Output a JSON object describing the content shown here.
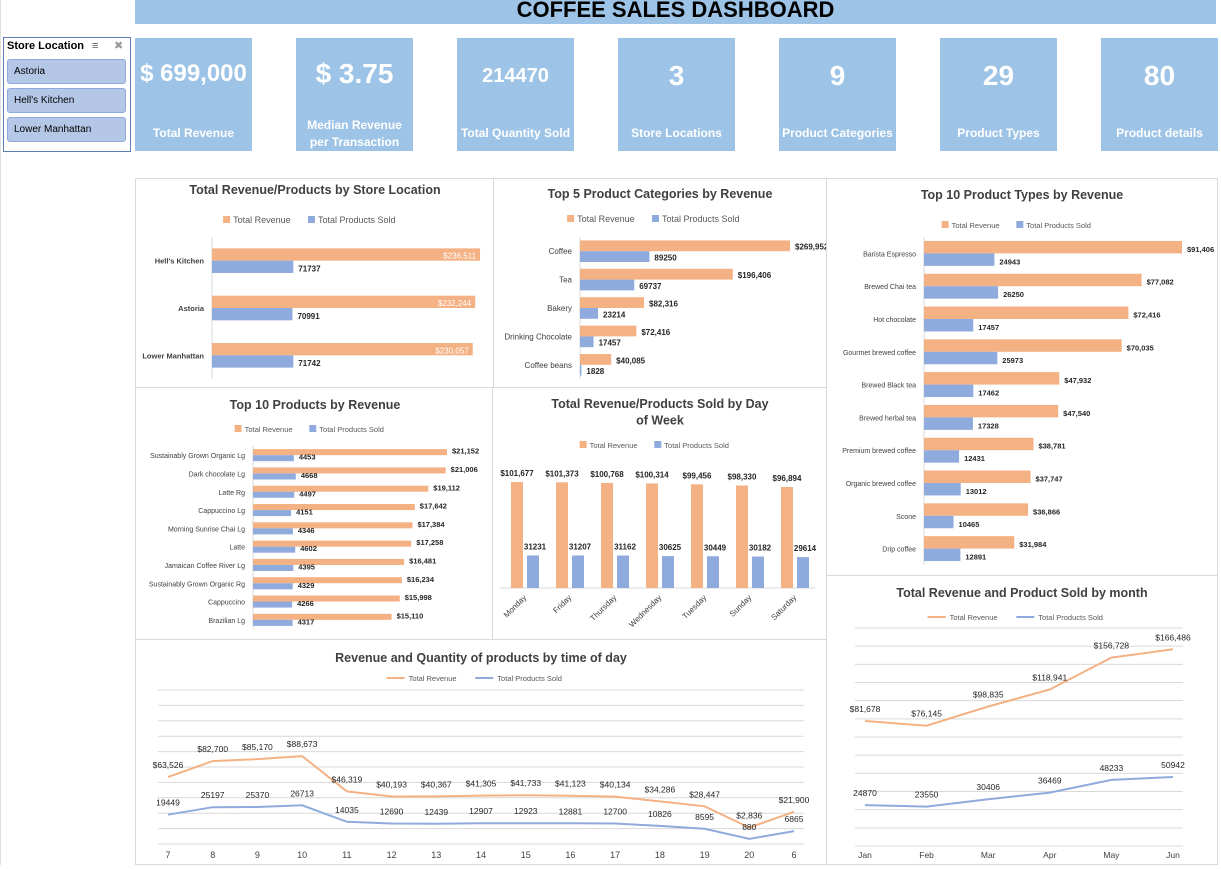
{
  "title": "COFFEE SALES DASHBOARD",
  "colors": {
    "revenue": "#f4b183",
    "products": "#8faadc",
    "header": "#9dc3e6"
  },
  "slicer": {
    "header": "Store Location",
    "icons": [
      "multi-select-icon",
      "clear-filter-icon"
    ],
    "items": [
      "Astoria",
      "Hell's Kitchen",
      "Lower Manhattan"
    ]
  },
  "kpis": [
    {
      "value": "$ 699,000",
      "label": "Total Revenue"
    },
    {
      "value": "$ 3.75",
      "label": "Median Revenue per Transaction"
    },
    {
      "value": "214470",
      "label": "Total Quantity Sold"
    },
    {
      "value": "3",
      "label": "Store Locations"
    },
    {
      "value": "9",
      "label": "Product Categories"
    },
    {
      "value": "29",
      "label": "Product Types"
    },
    {
      "value": "80",
      "label": "Product details"
    }
  ],
  "chart_data": [
    {
      "id": "store",
      "type": "bar",
      "orientation": "horizontal",
      "title": "Total Revenue/Products by Store Location",
      "categories": [
        "Hell's Kitchen",
        "Astoria",
        "Lower Manhattan"
      ],
      "series": [
        {
          "name": "Total Revenue",
          "values": [
            236511,
            232244,
            230057
          ],
          "labels": [
            "$236,511",
            "$232,244",
            "$230,057"
          ]
        },
        {
          "name": "Total Products Sold",
          "values": [
            71737,
            70991,
            71742
          ],
          "labels": [
            "71737",
            "70991",
            "71742"
          ]
        }
      ],
      "legend": "top"
    },
    {
      "id": "categories",
      "type": "bar",
      "orientation": "horizontal",
      "title": "Top 5 Product Categories by Revenue",
      "categories": [
        "Coffee",
        "Tea",
        "Bakery",
        "Drinking Chocolate",
        "Coffee beans"
      ],
      "series": [
        {
          "name": "Total Revenue",
          "values": [
            269952,
            196406,
            82316,
            72416,
            40085
          ],
          "labels": [
            "$269,952",
            "$196,406",
            "$82,316",
            "$72,416",
            "$40,085"
          ]
        },
        {
          "name": "Total Products Sold",
          "values": [
            89250,
            69737,
            23214,
            17457,
            1828
          ],
          "labels": [
            "89250",
            "69737",
            "23214",
            "17457",
            "1828"
          ]
        }
      ],
      "legend": "top"
    },
    {
      "id": "types",
      "type": "bar",
      "orientation": "horizontal",
      "title": "Top 10 Product Types by Revenue",
      "categories": [
        "Barista Espresso",
        "Brewed Chai tea",
        "Hot chocolate",
        "Gourmet brewed coffee",
        "Brewed Black tea",
        "Brewed herbal tea",
        "Premium brewed coffee",
        "Organic brewed coffee",
        "Scone",
        "Drip coffee"
      ],
      "series": [
        {
          "name": "Total Revenue",
          "values": [
            91406,
            77082,
            72416,
            70035,
            47932,
            47540,
            38781,
            37747,
            36866,
            31984
          ],
          "labels": [
            "$91,406",
            "$77,082",
            "$72,416",
            "$70,035",
            "$47,932",
            "$47,540",
            "$38,781",
            "$37,747",
            "$36,866",
            "$31,984"
          ]
        },
        {
          "name": "Total Products Sold",
          "values": [
            24943,
            26250,
            17457,
            25973,
            17462,
            17328,
            12431,
            13012,
            10465,
            12891
          ],
          "labels": [
            "24943",
            "26250",
            "17457",
            "25973",
            "17462",
            "17328",
            "12431",
            "13012",
            "10465",
            "12891"
          ]
        }
      ],
      "legend": "top"
    },
    {
      "id": "products",
      "type": "bar",
      "orientation": "horizontal",
      "title": "Top 10 Products by Revenue",
      "categories": [
        "Sustainably Grown Organic Lg",
        "Dark chocolate Lg",
        "Latte Rg",
        "Cappuccino Lg",
        "Morning Sunrise Chai Lg",
        "Latte",
        "Jamaican Coffee River Lg",
        "Sustainably Grown Organic Rg",
        "Cappuccino",
        "Brazilian Lg"
      ],
      "series": [
        {
          "name": "Total Revenue",
          "values": [
            21152,
            21006,
            19112,
            17642,
            17384,
            17258,
            16481,
            16234,
            15998,
            15110
          ],
          "labels": [
            "$21,152",
            "$21,006",
            "$19,112",
            "$17,642",
            "$17,384",
            "$17,258",
            "$16,481",
            "$16,234",
            "$15,998",
            "$15,110"
          ]
        },
        {
          "name": "Total Products Sold",
          "values": [
            4453,
            4668,
            4497,
            4151,
            4346,
            4602,
            4395,
            4329,
            4266,
            4317
          ],
          "labels": [
            "4453",
            "4668",
            "4497",
            "4151",
            "4346",
            "4602",
            "4395",
            "4329",
            "4266",
            "4317"
          ]
        }
      ],
      "legend": "top"
    },
    {
      "id": "weekday",
      "type": "bar",
      "orientation": "vertical",
      "title": "Total Revenue/Products Sold by Day of Week",
      "categories": [
        "Monday",
        "Friday",
        "Thursday",
        "Wednesday",
        "Tuesday",
        "Sunday",
        "Saturday"
      ],
      "series": [
        {
          "name": "Total Revenue",
          "values": [
            101677,
            101373,
            100768,
            100314,
            99456,
            98330,
            96894
          ],
          "labels": [
            "$101,677",
            "$101,373",
            "$100,768",
            "$100,314",
            "$99,456",
            "$98,330",
            "$96,894"
          ]
        },
        {
          "name": "Total Products Sold",
          "values": [
            31231,
            31207,
            31162,
            30625,
            30449,
            30182,
            29614
          ],
          "labels": [
            "31231",
            "31207",
            "31162",
            "30625",
            "30449",
            "30182",
            "29614"
          ]
        }
      ],
      "legend": "top"
    },
    {
      "id": "hourly",
      "type": "line",
      "title": "Revenue and Quantity of products by time of day",
      "categories": [
        "7",
        "8",
        "9",
        "10",
        "11",
        "12",
        "13",
        "14",
        "15",
        "16",
        "17",
        "18",
        "19",
        "20",
        "6"
      ],
      "series": [
        {
          "name": "Total Revenue",
          "values": [
            63526,
            82700,
            85170,
            88673,
            46319,
            40193,
            40367,
            41305,
            41733,
            41123,
            40134,
            34286,
            28447,
            2836,
            21900
          ],
          "labels": [
            "$63,526",
            "$82,700",
            "$85,170",
            "$88,673",
            "$46,319",
            "$40,193",
            "$40,367",
            "$41,305",
            "$41,733",
            "$41,123",
            "$40,134",
            "$34,286",
            "$28,447",
            "$2,836",
            "$21,900"
          ]
        },
        {
          "name": "Total Products Sold",
          "values": [
            19449,
            25197,
            25370,
            26713,
            14035,
            12690,
            12439,
            12907,
            12923,
            12881,
            12700,
            10826,
            8595,
            880,
            6865
          ],
          "labels": [
            "19449",
            "25197",
            "25370",
            "26713",
            "14035",
            "12690",
            "12439",
            "12907",
            "12923",
            "12881",
            "12700",
            "10826",
            "8595",
            "880",
            "6865"
          ]
        }
      ],
      "grid": true,
      "legend": "top"
    },
    {
      "id": "monthly",
      "type": "line",
      "title": "Total Revenue and Product Sold by month",
      "categories": [
        "Jan",
        "Feb",
        "Mar",
        "Apr",
        "May",
        "Jun"
      ],
      "series": [
        {
          "name": "Total Revenue",
          "values": [
            81678,
            76145,
            98835,
            118941,
            156728,
            166486
          ],
          "labels": [
            "$81,678",
            "$76,145",
            "$98,835",
            "$118,941",
            "$156,728",
            "$166,486"
          ]
        },
        {
          "name": "Total Products Sold",
          "values": [
            24870,
            23550,
            30406,
            36469,
            48233,
            50942
          ],
          "labels": [
            "24870",
            "23550",
            "30406",
            "36469",
            "48233",
            "50942"
          ]
        }
      ],
      "grid": true,
      "legend": "top"
    }
  ]
}
